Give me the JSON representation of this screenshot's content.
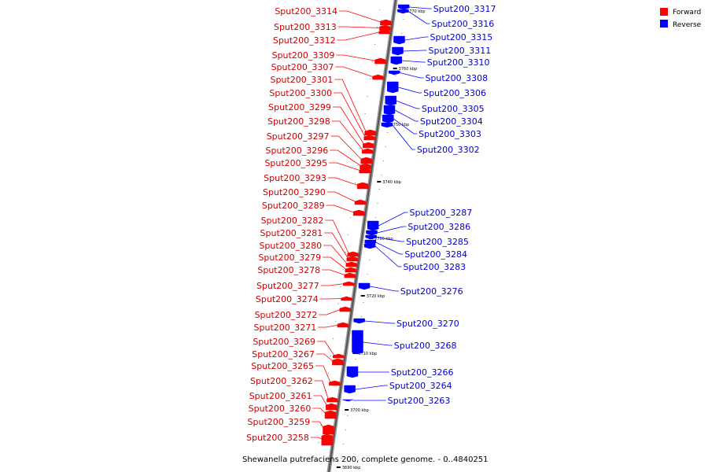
{
  "title": "Shewanella putrefaciens 200, complete genome. - 0..4840251",
  "legend": [
    {
      "key": "forward",
      "label": "Forward",
      "color": "#ff0000"
    },
    {
      "key": "reverse",
      "label": "Reverse",
      "color": "#0000ff"
    }
  ],
  "ticks": [
    "3770 kbp",
    "3760 kbp",
    "3750 kbp",
    "3740 kbp",
    "3730 kbp",
    "3720 kbp",
    "3710 kbp",
    "3700 kbp",
    "3690 kbp"
  ],
  "forward_genes": [
    "Sput200_3314",
    "Sput200_3313",
    "Sput200_3312",
    "Sput200_3309",
    "Sput200_3307",
    "Sput200_3301",
    "Sput200_3300",
    "Sput200_3299",
    "Sput200_3298",
    "Sput200_3297",
    "Sput200_3296",
    "Sput200_3295",
    "Sput200_3293",
    "Sput200_3290",
    "Sput200_3289",
    "Sput200_3282",
    "Sput200_3281",
    "Sput200_3280",
    "Sput200_3279",
    "Sput200_3278",
    "Sput200_3277",
    "Sput200_3274",
    "Sput200_3272",
    "Sput200_3271",
    "Sput200_3269",
    "Sput200_3267",
    "Sput200_3265",
    "Sput200_3262",
    "Sput200_3261",
    "Sput200_3260",
    "Sput200_3259",
    "Sput200_3258"
  ],
  "reverse_genes": [
    "Sput200_3317",
    "Sput200_3316",
    "Sput200_3315",
    "Sput200_3311",
    "Sput200_3310",
    "Sput200_3308",
    "Sput200_3306",
    "Sput200_3305",
    "Sput200_3304",
    "Sput200_3303",
    "Sput200_3302",
    "Sput200_3287",
    "Sput200_3286",
    "Sput200_3285",
    "Sput200_3284",
    "Sput200_3283",
    "Sput200_3276",
    "Sput200_3270",
    "Sput200_3268",
    "Sput200_3266",
    "Sput200_3264",
    "Sput200_3263"
  ]
}
